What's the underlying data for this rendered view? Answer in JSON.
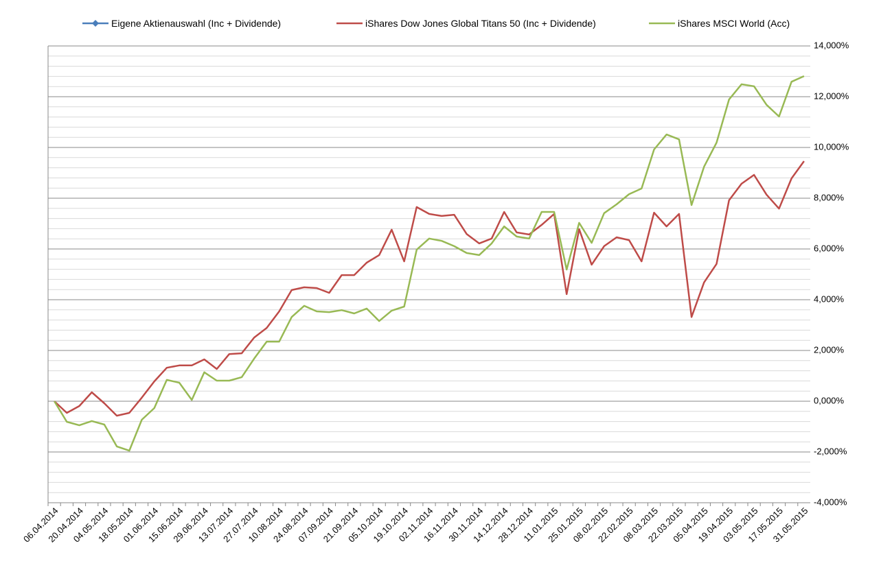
{
  "chart_data": {
    "type": "line",
    "categories": [
      "06.04.2014",
      null,
      "20.04.2014",
      null,
      "04.05.2014",
      null,
      "18.05.2014",
      null,
      "01.06.2014",
      null,
      "15.06.2014",
      null,
      "29.06.2014",
      null,
      "13.07.2014",
      null,
      "27.07.2014",
      null,
      "10.08.2014",
      null,
      "24.08.2014",
      null,
      "07.09.2014",
      null,
      "21.09.2014",
      null,
      "05.10.2014",
      null,
      "19.10.2014",
      null,
      "02.11.2014",
      null,
      "16.11.2014",
      null,
      "30.11.2014",
      null,
      "14.12.2014",
      null,
      "28.12.2014",
      null,
      "11.01.2015",
      null,
      "25.01.2015",
      null,
      "08.02.2015",
      null,
      "22.02.2015",
      null,
      "08.03.2015",
      null,
      "22.03.2015",
      null,
      "05.04.2015",
      null,
      "19.04.2015",
      null,
      "03.05.2015",
      null,
      "17.05.2015",
      null,
      "31.05.2015"
    ],
    "series": [
      {
        "name": "Eigene Aktienauswahl (Inc + Dividende)",
        "color": "#4a7ebb",
        "marker": "diamond",
        "values": [
          null,
          null,
          null,
          null,
          null,
          null,
          null,
          null,
          null,
          null,
          null,
          null,
          null,
          null,
          null,
          null,
          null,
          null,
          null,
          null,
          null,
          null,
          null,
          null,
          null,
          null,
          null,
          null,
          null,
          null,
          null,
          null,
          null,
          null,
          null,
          null,
          null,
          null,
          null,
          null,
          null,
          null,
          null,
          null,
          null,
          null,
          null,
          null,
          null,
          null,
          null,
          null,
          null,
          null,
          null,
          null,
          null,
          null,
          null,
          null,
          null
        ]
      },
      {
        "name": "iShares Dow Jones Global Titans 50 (Inc + Dividende)",
        "color": "#be4b48",
        "values": [
          0,
          -0.46,
          -0.19,
          0.35,
          -0.08,
          -0.57,
          -0.46,
          0.14,
          0.78,
          1.32,
          1.41,
          1.41,
          1.65,
          1.27,
          1.86,
          1.89,
          2.51,
          2.89,
          3.54,
          4.38,
          4.49,
          4.46,
          4.27,
          4.97,
          4.97,
          5.46,
          5.76,
          6.76,
          5.51,
          7.65,
          7.38,
          7.3,
          7.35,
          6.59,
          6.22,
          6.41,
          7.46,
          6.65,
          6.57,
          6.95,
          7.38,
          4.22,
          6.78,
          5.38,
          6.11,
          6.46,
          6.35,
          5.51,
          7.43,
          6.89,
          7.38,
          3.32,
          4.68,
          5.41,
          7.92,
          8.57,
          8.92,
          8.14,
          7.59,
          8.78,
          9.46
        ]
      },
      {
        "name": "iShares MSCI World (Acc)",
        "color": "#98b954",
        "values": [
          0,
          -0.81,
          -0.95,
          -0.78,
          -0.92,
          -1.78,
          -1.95,
          -0.73,
          -0.27,
          0.84,
          0.73,
          0.05,
          1.14,
          0.81,
          0.81,
          0.95,
          1.68,
          2.35,
          2.35,
          3.32,
          3.76,
          3.54,
          3.51,
          3.59,
          3.46,
          3.65,
          3.16,
          3.57,
          3.73,
          5.97,
          6.41,
          6.32,
          6.11,
          5.84,
          5.76,
          6.22,
          6.89,
          6.49,
          6.41,
          7.46,
          7.46,
          5.19,
          7.03,
          6.24,
          7.41,
          7.76,
          8.16,
          8.38,
          9.92,
          10.51,
          10.32,
          7.73,
          9.24,
          10.19,
          11.89,
          12.49,
          12.41,
          11.68,
          11.22,
          12.59,
          12.81
        ]
      }
    ],
    "ylim": [
      -4,
      14
    ],
    "yticks": [
      {
        "value": -4,
        "label": "-4,000%"
      },
      {
        "value": -2,
        "label": "-2,000%"
      },
      {
        "value": 0,
        "label": "0,000%"
      },
      {
        "value": 2,
        "label": "2,000%"
      },
      {
        "value": 4,
        "label": "4,000%"
      },
      {
        "value": 6,
        "label": "6,000%"
      },
      {
        "value": 8,
        "label": "8,000%"
      },
      {
        "value": 10,
        "label": "10,000%"
      },
      {
        "value": 12,
        "label": "12,000%"
      },
      {
        "value": 14,
        "label": "14,000%"
      }
    ],
    "y_axis_side": "right",
    "grid": true,
    "minor_grid_step": 0.4,
    "legend": "top"
  }
}
